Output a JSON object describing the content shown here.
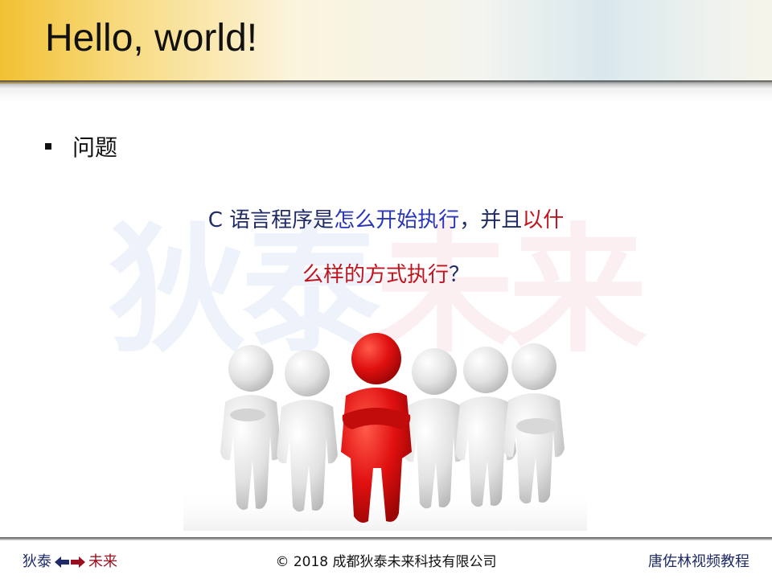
{
  "slide": {
    "title": "Hello, world!"
  },
  "bullet": {
    "text": "问题"
  },
  "watermark": {
    "part1": "狄泰",
    "part2": "未来"
  },
  "question": {
    "line1": [
      {
        "text": "C ",
        "color": "#1f2a66"
      },
      {
        "text": "语言程序是",
        "color": "#1f2a66"
      },
      {
        "text": "怎么开始执行",
        "color": "#2a36b8"
      },
      {
        "text": "，并且",
        "color": "#1f2a66"
      },
      {
        "text": "以什",
        "color": "#c0151f"
      }
    ],
    "line2": [
      {
        "text": "么样的方式执行",
        "color": "#c0151f"
      },
      {
        "text": "？",
        "color": "#1f2a66"
      }
    ]
  },
  "illustration": {
    "icon": "people-figures-icon",
    "leader_color": "#e01010",
    "crowd_color": "#e6e6e6"
  },
  "footer": {
    "left_a": "狄泰",
    "left_b": "未来",
    "left_a_color": "#1f2a66",
    "left_b_color": "#9b1020",
    "arrow_icon": "double-arrow-icon",
    "copyright": "© 2018 成都狄泰未来科技有限公司",
    "right": "唐佐林视频教程"
  }
}
